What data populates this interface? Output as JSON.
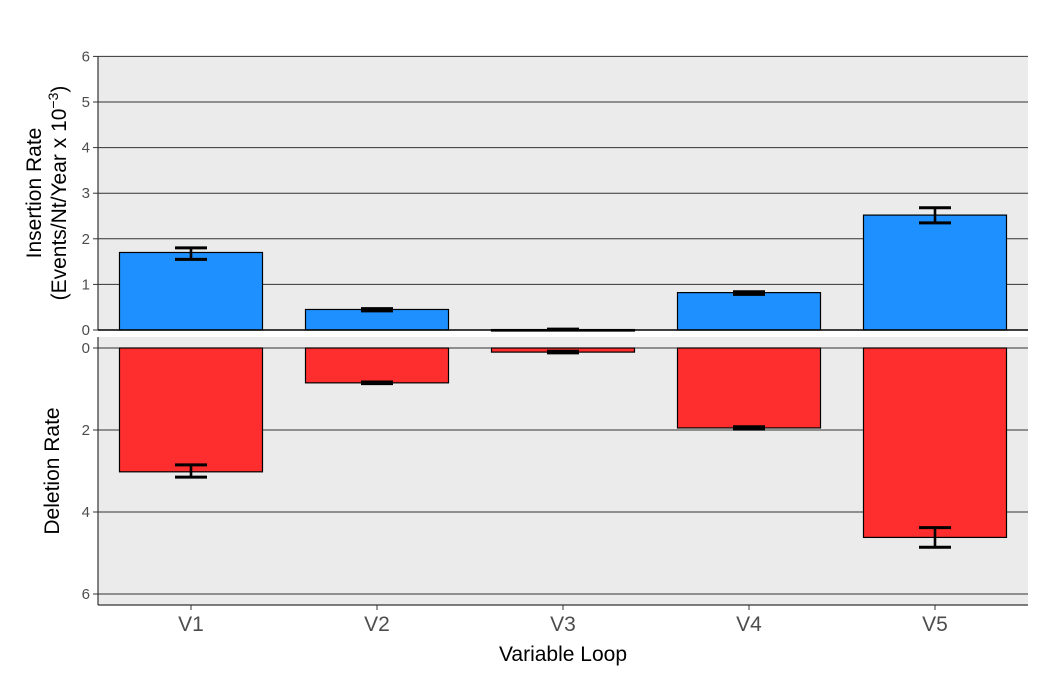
{
  "chart_data": {
    "type": "bar",
    "layout": "mirrored-panels",
    "categories": [
      "V1",
      "V2",
      "V3",
      "V4",
      "V5"
    ],
    "xlabel": "Variable Loop",
    "grid": true,
    "panels": [
      {
        "id": "insertion",
        "ylabel_line1": "Insertion Rate",
        "ylabel_line2": "(Events/Nt/Year x  10",
        "ylabel_exponent": "−3",
        "ylabel_close": ")",
        "ylim": [
          0,
          6
        ],
        "yticks": [
          "0",
          "1",
          "2",
          "3",
          "4",
          "5",
          "6"
        ],
        "direction": "up",
        "color": "#1e90ff",
        "values": [
          1.7,
          0.45,
          0.01,
          0.82,
          2.52
        ],
        "error_low": [
          1.55,
          0.42,
          0.0,
          0.78,
          2.35
        ],
        "error_high": [
          1.8,
          0.47,
          0.02,
          0.84,
          2.68
        ]
      },
      {
        "id": "deletion",
        "ylabel": "Deletion Rate",
        "ylim": [
          0,
          6.2
        ],
        "yticks": [
          "0",
          "2",
          "4",
          "6"
        ],
        "direction": "down",
        "color": "#ff2e2e",
        "values": [
          3.02,
          0.85,
          0.1,
          1.95,
          4.62
        ],
        "error_low": [
          2.85,
          0.83,
          0.08,
          1.92,
          4.38
        ],
        "error_high": [
          3.15,
          0.87,
          0.12,
          1.98,
          4.86
        ]
      }
    ]
  }
}
